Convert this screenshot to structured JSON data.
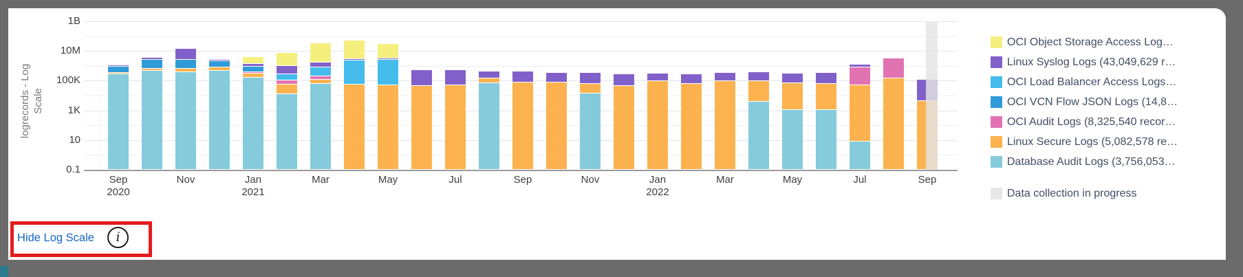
{
  "footer": {
    "link_label": "Hide Log Scale",
    "info_icon_glyph": "i"
  },
  "frame_color": "#6B6B6B",
  "annotation_color": "#E41B1E",
  "chart_data": {
    "type": "bar",
    "stacked": true,
    "log_scale": true,
    "ylabel": "logrecords - Log Scale",
    "ylim": [
      0.1,
      1000000000
    ],
    "grid": true,
    "legend_position": "right",
    "y_ticks": [
      {
        "label": "1B",
        "value": 1000000000
      },
      {
        "label": "10M",
        "value": 10000000
      },
      {
        "label": "100K",
        "value": 100000
      },
      {
        "label": "1K",
        "value": 1000
      },
      {
        "label": "10",
        "value": 10
      },
      {
        "label": "0.1",
        "value": 0.1
      }
    ],
    "x_ticks": [
      {
        "label": "Sep",
        "year": "2020"
      },
      {
        "label": "Nov",
        "year": ""
      },
      {
        "label": "Jan",
        "year": "2021"
      },
      {
        "label": "Mar",
        "year": ""
      },
      {
        "label": "May",
        "year": ""
      },
      {
        "label": "Jul",
        "year": ""
      },
      {
        "label": "Sep",
        "year": ""
      },
      {
        "label": "Nov",
        "year": ""
      },
      {
        "label": "Jan",
        "year": "2022"
      },
      {
        "label": "Mar",
        "year": ""
      },
      {
        "label": "May",
        "year": ""
      },
      {
        "label": "Jul",
        "year": ""
      },
      {
        "label": "Sep",
        "year": ""
      }
    ],
    "series": [
      {
        "id": "object_storage",
        "label": "OCI Object Storage Access Log…",
        "color": "#F5F07E"
      },
      {
        "id": "linux_syslog",
        "label": "Linux Syslog Logs (43,049,629 r…",
        "color": "#8161C9"
      },
      {
        "id": "lb_access",
        "label": "OCI Load Balancer Access Logs…",
        "color": "#45BCEC"
      },
      {
        "id": "vcn_flow",
        "label": "OCI VCN Flow JSON Logs (14,8…",
        "color": "#2F9BD8"
      },
      {
        "id": "oci_audit",
        "label": "OCI Audit Logs (8,325,540 recor…",
        "color": "#E273B2"
      },
      {
        "id": "linux_secure",
        "label": "Linux Secure Logs (5,082,578 re…",
        "color": "#FCB34F"
      },
      {
        "id": "db_audit",
        "label": "Database Audit Logs (3,756,053…",
        "color": "#85CBDC"
      }
    ],
    "progress_legend": {
      "id": "progress",
      "label": "Data collection in progress",
      "color": "#E7E7E7"
    },
    "months": [
      {
        "label": "Sep 2020",
        "stack": [
          [
            "db_audit",
            270000
          ],
          [
            "linux_secure",
            70000
          ],
          [
            "vcn_flow",
            530000
          ],
          [
            "linux_syslog",
            230000
          ]
        ]
      },
      {
        "label": "Oct 2020",
        "stack": [
          [
            "db_audit",
            470000
          ],
          [
            "linux_secure",
            170000
          ],
          [
            "vcn_flow",
            1900000
          ],
          [
            "linux_syslog",
            900000
          ]
        ]
      },
      {
        "label": "Nov 2020",
        "stack": [
          [
            "db_audit",
            370000
          ],
          [
            "linux_secure",
            270000
          ],
          [
            "vcn_flow",
            1900000
          ],
          [
            "linux_syslog",
            11500000
          ]
        ]
      },
      {
        "label": "Dec 2020",
        "stack": [
          [
            "db_audit",
            470000
          ],
          [
            "linux_secure",
            320000
          ],
          [
            "vcn_flow",
            1200000
          ],
          [
            "linux_syslog",
            600000
          ]
        ]
      },
      {
        "label": "Jan 2021",
        "stack": [
          [
            "db_audit",
            160000
          ],
          [
            "linux_secure",
            140000
          ],
          [
            "oci_audit",
            70000
          ],
          [
            "vcn_flow",
            500000
          ],
          [
            "linux_syslog",
            480000
          ],
          [
            "object_storage",
            2500000
          ]
        ]
      },
      {
        "label": "Feb 2021",
        "stack": [
          [
            "db_audit",
            12000
          ],
          [
            "linux_secure",
            43000
          ],
          [
            "oci_audit",
            50000
          ],
          [
            "lb_access",
            170000
          ],
          [
            "linux_syslog",
            700000
          ],
          [
            "object_storage",
            6400000
          ]
        ]
      },
      {
        "label": "Mar 2021",
        "stack": [
          [
            "db_audit",
            62000
          ],
          [
            "linux_secure",
            53000
          ],
          [
            "oci_audit",
            85000
          ],
          [
            "lb_access",
            590000
          ],
          [
            "linux_syslog",
            900000
          ],
          [
            "object_storage",
            31000000
          ]
        ]
      },
      {
        "label": "Apr 2021",
        "stack": [
          [
            "linux_secure",
            55000
          ],
          [
            "lb_access",
            2250000
          ],
          [
            "linux_syslog",
            500000
          ],
          [
            "object_storage",
            47000000
          ]
        ]
      },
      {
        "label": "May 2021",
        "stack": [
          [
            "linux_secure",
            50000
          ],
          [
            "lb_access",
            2550000
          ],
          [
            "linux_syslog",
            600000
          ],
          [
            "object_storage",
            27000000
          ]
        ]
      },
      {
        "label": "Jun 2021",
        "stack": [
          [
            "linux_secure",
            45000
          ],
          [
            "linux_syslog",
            465000
          ]
        ]
      },
      {
        "label": "Jul 2021",
        "stack": [
          [
            "linux_secure",
            50000
          ],
          [
            "linux_syslog",
            460000
          ]
        ]
      },
      {
        "label": "Aug 2021",
        "stack": [
          [
            "db_audit",
            68000
          ],
          [
            "linux_secure",
            70000
          ],
          [
            "linux_syslog",
            280000
          ]
        ]
      },
      {
        "label": "Sep 2021",
        "stack": [
          [
            "linux_secure",
            75000
          ],
          [
            "linux_syslog",
            340000
          ]
        ]
      },
      {
        "label": "Oct 2021",
        "stack": [
          [
            "linux_secure",
            75000
          ],
          [
            "linux_syslog",
            260000
          ]
        ]
      },
      {
        "label": "Nov 2021",
        "stack": [
          [
            "db_audit",
            14000
          ],
          [
            "linux_secure",
            48000
          ],
          [
            "linux_syslog",
            270000
          ]
        ]
      },
      {
        "label": "Dec 2021",
        "stack": [
          [
            "linux_secure",
            45000
          ],
          [
            "linux_syslog",
            230000
          ]
        ]
      },
      {
        "label": "Jan 2022",
        "stack": [
          [
            "linux_secure",
            93000
          ],
          [
            "linux_syslog",
            200000
          ]
        ]
      },
      {
        "label": "Feb 2022",
        "stack": [
          [
            "linux_secure",
            62000
          ],
          [
            "linux_syslog",
            210000
          ]
        ]
      },
      {
        "label": "Mar 2022",
        "stack": [
          [
            "linux_secure",
            93000
          ],
          [
            "linux_syslog",
            240000
          ]
        ]
      },
      {
        "label": "Apr 2022",
        "stack": [
          [
            "db_audit",
            3800
          ],
          [
            "linux_secure",
            89000
          ],
          [
            "linux_syslog",
            270000
          ]
        ]
      },
      {
        "label": "May 2022",
        "stack": [
          [
            "db_audit",
            1100
          ],
          [
            "linux_secure",
            67000
          ],
          [
            "linux_syslog",
            230000
          ]
        ]
      },
      {
        "label": "Jun 2022",
        "stack": [
          [
            "db_audit",
            1100
          ],
          [
            "linux_secure",
            61000
          ],
          [
            "linux_syslog",
            270000
          ]
        ]
      },
      {
        "label": "Jul 2022",
        "stack": [
          [
            "db_audit",
            8
          ],
          [
            "linux_secure",
            50000
          ],
          [
            "oci_audit",
            740000
          ],
          [
            "linux_syslog",
            400000
          ]
        ]
      },
      {
        "label": "Aug 2022",
        "stack": [
          [
            "linux_secure",
            145000
          ],
          [
            "oci_audit",
            3000000
          ]
        ]
      },
      {
        "label": "Sep 2022",
        "stack": [
          [
            "linux_secure",
            4300
          ],
          [
            "linux_syslog",
            110000
          ]
        ],
        "data_collection_in_progress": true
      }
    ]
  }
}
